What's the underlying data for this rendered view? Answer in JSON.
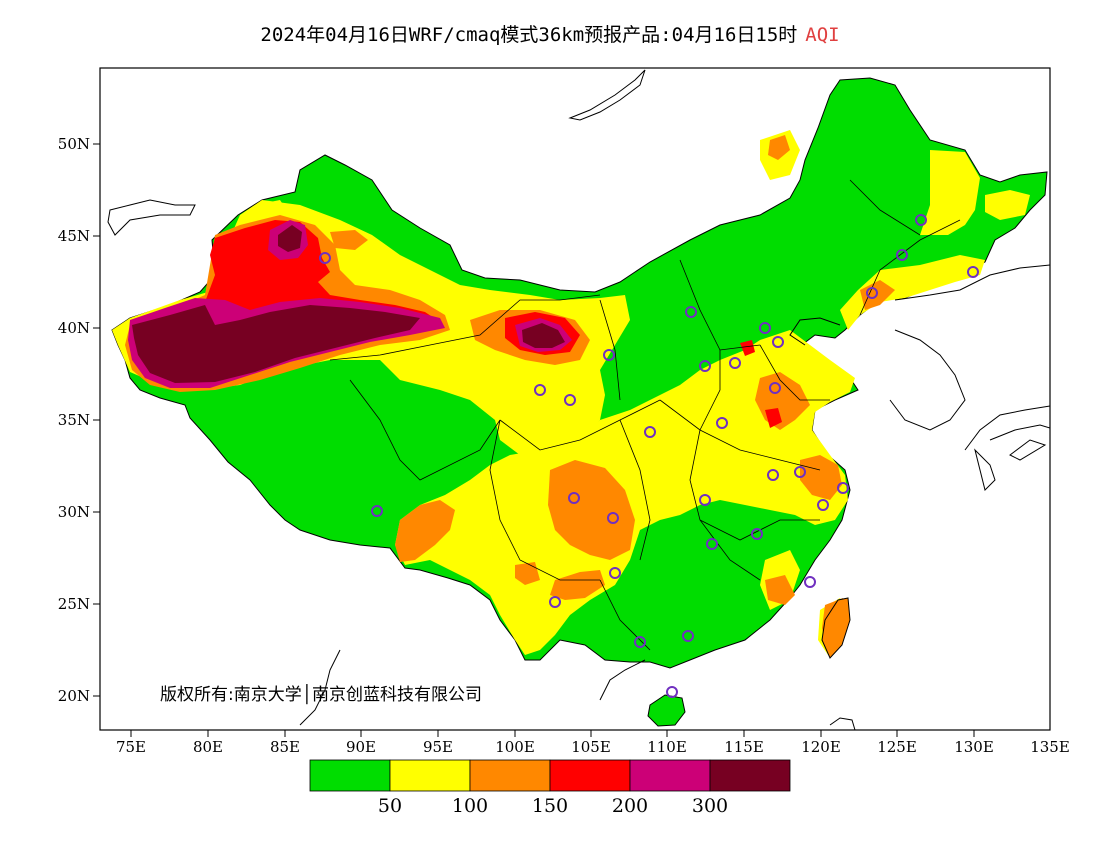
{
  "title": {
    "main": "2024年04月16日WRF/cmaq模式36km预报产品:04月16日15时",
    "product": "AQI",
    "product_color": "#e04040"
  },
  "axes": {
    "lon_ticks": [
      "75E",
      "80E",
      "85E",
      "90E",
      "95E",
      "100E",
      "105E",
      "110E",
      "115E",
      "120E",
      "125E",
      "130E",
      "135E"
    ],
    "lat_ticks": [
      "50N",
      "45N",
      "40N",
      "35N",
      "30N",
      "25N",
      "20N"
    ]
  },
  "legend": {
    "colors": [
      "#00dd00",
      "#ffff00",
      "#ff8800",
      "#ff0000",
      "#cc0077",
      "#770022"
    ],
    "labels": [
      "50",
      "100",
      "150",
      "200",
      "300"
    ]
  },
  "copyright": "版权所有:南京大学│南京创蓝科技有限公司",
  "station_marker_color": "#7030c0"
}
